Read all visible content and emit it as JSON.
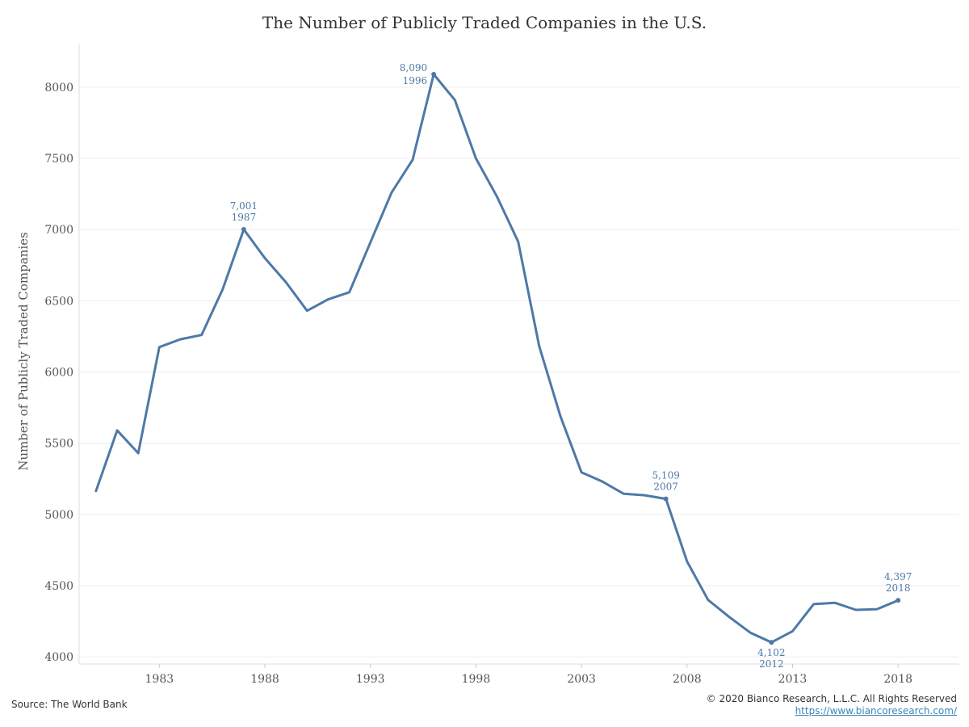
{
  "page": {
    "source": "Source: The World Bank",
    "copyright": "© 2020 Bianco Research, L.L.C. All Rights Reserved",
    "url": "https://www.biancoresearch.com/"
  },
  "colors": {
    "line": "#4e79a7",
    "grid": "#eeeeee",
    "axis_text": "#555555"
  },
  "chart_data": {
    "type": "line",
    "title": "The Number of Publicly Traded Companies in the U.S.",
    "xlabel": "",
    "ylabel": "Number of Publicly Traded Companies",
    "xlim": [
      1979.2,
      2020.9
    ],
    "ylim": [
      3950,
      8300
    ],
    "x_ticks": [
      1983,
      1988,
      1993,
      1998,
      2003,
      2008,
      2013,
      2018
    ],
    "y_ticks": [
      4000,
      4500,
      5000,
      5500,
      6000,
      6500,
      7000,
      7500,
      8000
    ],
    "grid": true,
    "series": [
      {
        "x": [
          1980,
          1981,
          1982,
          1983,
          1984,
          1985,
          1986,
          1987,
          1988,
          1989,
          1990,
          1991,
          1992,
          1993,
          1994,
          1995,
          1996,
          1997,
          1998,
          1999,
          2000,
          2001,
          2002,
          2003,
          2004,
          2005,
          2006,
          2007,
          2008,
          2009,
          2010,
          2011,
          2012,
          2013,
          2014,
          2015,
          2016,
          2017,
          2018
        ],
        "y": [
          5165,
          5590,
          5430,
          6175,
          6230,
          6260,
          6580,
          7001,
          6800,
          6630,
          6430,
          6510,
          6560,
          6910,
          7260,
          7490,
          8090,
          7910,
          7500,
          7230,
          6915,
          6180,
          5690,
          5295,
          5230,
          5145,
          5135,
          5109,
          4670,
          4400,
          4280,
          4170,
          4102,
          4180,
          4370,
          4380,
          4330,
          4335,
          4397
        ]
      }
    ],
    "annotations": [
      {
        "x": 1987,
        "y": 7001,
        "value": "7,001",
        "year": "1987",
        "position": "above"
      },
      {
        "x": 1996,
        "y": 8090,
        "value": "8,090",
        "year": "1996",
        "position": "left"
      },
      {
        "x": 2007,
        "y": 5109,
        "value": "5,109",
        "year": "2007",
        "position": "above"
      },
      {
        "x": 2012,
        "y": 4102,
        "value": "4,102",
        "year": "2012",
        "position": "below"
      },
      {
        "x": 2018,
        "y": 4397,
        "value": "4,397",
        "year": "2018",
        "position": "above"
      }
    ]
  }
}
